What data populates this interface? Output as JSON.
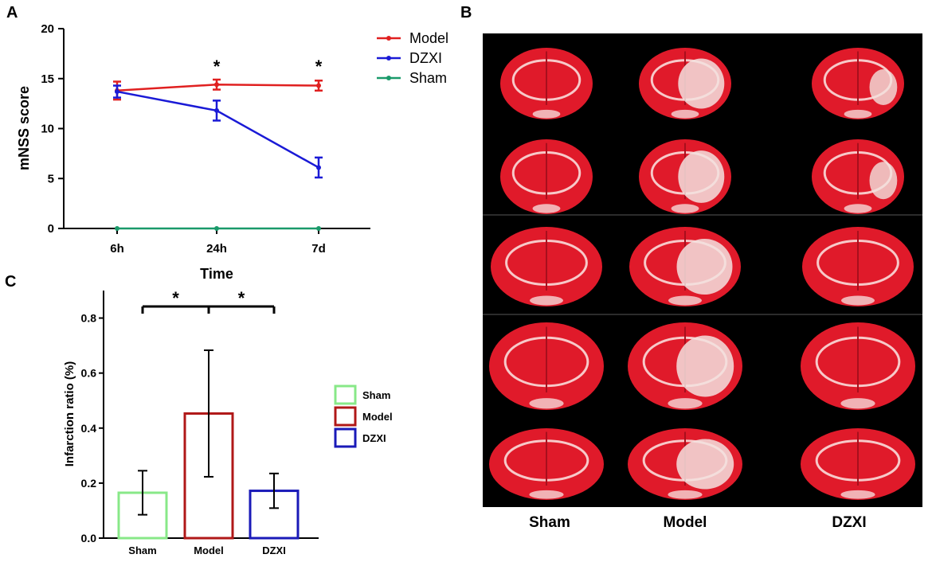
{
  "panels": {
    "a": "A",
    "b": "B",
    "c": "C"
  },
  "chart_data": [
    {
      "type": "line",
      "panel": "A",
      "xlabel": "Time",
      "ylabel": "mNSS score",
      "categories": [
        "6h",
        "24h",
        "7d"
      ],
      "ylim": [
        0,
        20
      ],
      "yticks": [
        0,
        5,
        10,
        15,
        20
      ],
      "series": [
        {
          "name": "Model",
          "color": "#e02020",
          "values": [
            13.8,
            14.4,
            14.3
          ],
          "errors": [
            0.9,
            0.5,
            0.5
          ]
        },
        {
          "name": "DZXI",
          "color": "#1a1ad6",
          "values": [
            13.7,
            11.8,
            6.1
          ],
          "errors": [
            0.6,
            1.0,
            1.0
          ]
        },
        {
          "name": "Sham",
          "color": "#1a9a6a",
          "values": [
            0,
            0,
            0
          ],
          "errors": [
            0,
            0,
            0
          ]
        }
      ],
      "annotations": [
        {
          "category": "24h",
          "text": "*"
        },
        {
          "category": "7d",
          "text": "*"
        }
      ]
    },
    {
      "type": "bar",
      "panel": "C",
      "ylabel": "Infarction ratio (%)",
      "xlabel": "",
      "categories": [
        "Sham",
        "Model",
        "DZXI"
      ],
      "values": [
        0.165,
        0.453,
        0.172
      ],
      "errors": [
        0.08,
        0.23,
        0.063
      ],
      "colors": [
        "#88e888",
        "#b01818",
        "#1a1ab8"
      ],
      "ylim": [
        0,
        0.9
      ],
      "yticks": [
        "0.0",
        "0.2",
        "0.4",
        "0.6",
        "0.8"
      ],
      "legend": [
        "Sham",
        "Model",
        "DZXI"
      ],
      "significance": [
        {
          "from": "Sham",
          "to": "Model",
          "text": "*"
        },
        {
          "from": "Model",
          "to": "DZXI",
          "text": "*"
        }
      ]
    }
  ],
  "image_panel": {
    "panel": "B",
    "description_labels": [
      "Sham",
      "Model",
      "DZXI"
    ]
  }
}
